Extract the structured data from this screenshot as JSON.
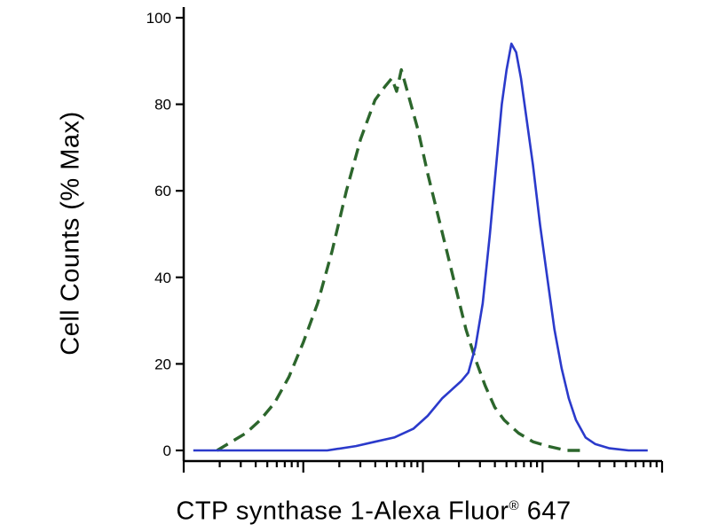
{
  "chart_data": {
    "type": "line",
    "subtype": "flow-cytometry-histogram",
    "title": "",
    "xlabel": "CTP synthase 1-Alexa Fluor® 647",
    "ylabel": "Cell Counts (% Max)",
    "ylim": [
      0,
      100
    ],
    "y_ticks": [
      0,
      20,
      40,
      60,
      80,
      100
    ],
    "x_axis": {
      "scale": "log",
      "decades": 4,
      "tick_labels_shown": false
    },
    "grid": false,
    "legend": "none",
    "x_units": "fraction of x-axis width (log fluorescence intensity, unlabeled)",
    "series": [
      {
        "name": "dashed-green-curve",
        "color": "#2c662c",
        "style": "dashed",
        "line_width": 3.4,
        "points": [
          [
            0.07,
            0
          ],
          [
            0.1,
            2
          ],
          [
            0.13,
            4
          ],
          [
            0.16,
            7
          ],
          [
            0.19,
            11
          ],
          [
            0.22,
            17
          ],
          [
            0.25,
            25
          ],
          [
            0.28,
            34
          ],
          [
            0.31,
            46
          ],
          [
            0.34,
            60
          ],
          [
            0.37,
            72
          ],
          [
            0.4,
            81
          ],
          [
            0.42,
            84
          ],
          [
            0.435,
            86
          ],
          [
            0.445,
            83
          ],
          [
            0.455,
            88
          ],
          [
            0.47,
            82
          ],
          [
            0.49,
            74
          ],
          [
            0.51,
            64
          ],
          [
            0.53,
            55
          ],
          [
            0.55,
            46
          ],
          [
            0.57,
            37
          ],
          [
            0.59,
            28
          ],
          [
            0.61,
            21
          ],
          [
            0.63,
            15
          ],
          [
            0.65,
            10
          ],
          [
            0.67,
            7
          ],
          [
            0.7,
            4
          ],
          [
            0.73,
            2
          ],
          [
            0.76,
            1
          ],
          [
            0.8,
            0
          ],
          [
            0.83,
            0
          ]
        ]
      },
      {
        "name": "solid-blue-curve",
        "color": "#2b3acb",
        "style": "solid",
        "line_width": 2.6,
        "points": [
          [
            0.02,
            0
          ],
          [
            0.12,
            0
          ],
          [
            0.22,
            0
          ],
          [
            0.3,
            0
          ],
          [
            0.36,
            1
          ],
          [
            0.4,
            2
          ],
          [
            0.44,
            3
          ],
          [
            0.48,
            5
          ],
          [
            0.51,
            8
          ],
          [
            0.54,
            12
          ],
          [
            0.56,
            14
          ],
          [
            0.58,
            16
          ],
          [
            0.595,
            18
          ],
          [
            0.61,
            24
          ],
          [
            0.625,
            34
          ],
          [
            0.64,
            50
          ],
          [
            0.655,
            68
          ],
          [
            0.665,
            80
          ],
          [
            0.675,
            88
          ],
          [
            0.685,
            94
          ],
          [
            0.695,
            92
          ],
          [
            0.705,
            86
          ],
          [
            0.715,
            78
          ],
          [
            0.73,
            66
          ],
          [
            0.745,
            52
          ],
          [
            0.76,
            40
          ],
          [
            0.775,
            28
          ],
          [
            0.79,
            19
          ],
          [
            0.805,
            12
          ],
          [
            0.82,
            7
          ],
          [
            0.84,
            3
          ],
          [
            0.86,
            1.5
          ],
          [
            0.89,
            0.5
          ],
          [
            0.93,
            0
          ],
          [
            0.97,
            0
          ]
        ]
      }
    ]
  },
  "labels": {
    "ylabel": "Cell Counts (% Max)",
    "xlabel_main": "CTP synthase 1-Alexa Fluor",
    "xlabel_sup": "®",
    "xlabel_end": " 647"
  }
}
